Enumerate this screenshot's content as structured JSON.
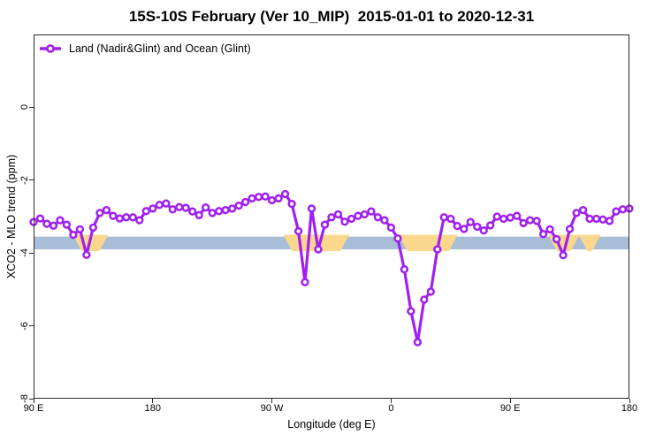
{
  "title": "15S-10S February (Ver 10_MIP)  2015-01-01 to 2020-12-31",
  "legend": {
    "label": "Land (Nadir&Glint) and Ocean (Glint)"
  },
  "axes": {
    "x": {
      "label": "Longitude (deg E)",
      "ticks": [
        {
          "v": 90,
          "label": "90 E"
        },
        {
          "v": 180,
          "label": "180"
        },
        {
          "v": 270,
          "label": "90 W"
        },
        {
          "v": 360,
          "label": "0"
        },
        {
          "v": 450,
          "label": "90 E"
        },
        {
          "v": 540,
          "label": "180"
        }
      ]
    },
    "y": {
      "label": "XCO2 - MLO trend (ppm)",
      "ticks": [
        {
          "v": 0,
          "label": "0"
        },
        {
          "v": -2,
          "label": "-2"
        },
        {
          "v": -4,
          "label": "-4"
        },
        {
          "v": -6,
          "label": "-6"
        },
        {
          "v": -8,
          "label": "-8"
        }
      ]
    }
  },
  "colors": {
    "line": "#A020F0",
    "marker_fill": "#ffffff",
    "blue_band": "#A8BDD6",
    "orange_band": "#FAD78C",
    "axis": "#2a2a2a"
  },
  "chart_data": {
    "type": "line",
    "title": "15S-10S February (Ver 10_MIP)  2015-01-01 to 2020-12-31",
    "xlabel": "Longitude (deg E)",
    "ylabel": "XCO2 - MLO trend (ppm)",
    "xlim": [
      90,
      540
    ],
    "ylim": [
      -8,
      2
    ],
    "grid": false,
    "legend_position": "top-left-inside",
    "x_tick_labels_note": "longitude wraps eastward: 90E,180,90W,0,90E,180",
    "series": [
      {
        "name": "Land (Nadir&Glint) and Ocean (Glint)",
        "color": "#A020F0",
        "marker": "open-circle",
        "x": [
          90,
          95,
          100,
          105,
          110,
          115,
          120,
          125,
          130,
          135,
          140,
          145,
          150,
          155,
          160,
          165,
          170,
          175,
          180,
          185,
          190,
          195,
          200,
          205,
          210,
          215,
          220,
          225,
          230,
          235,
          240,
          245,
          250,
          255,
          260,
          265,
          270,
          275,
          280,
          285,
          290,
          295,
          300,
          305,
          310,
          315,
          320,
          325,
          330,
          335,
          340,
          345,
          350,
          355,
          360,
          365,
          370,
          375,
          380,
          385,
          390,
          395,
          400,
          405,
          410,
          415,
          420,
          425,
          430,
          435,
          440,
          445,
          450,
          455,
          460,
          465,
          470,
          475,
          480,
          485,
          490,
          495,
          500,
          505,
          510,
          515,
          520,
          525,
          530,
          535,
          540
        ],
        "y": [
          -3.15,
          -3.05,
          -3.2,
          -3.25,
          -3.1,
          -3.22,
          -3.5,
          -3.35,
          -4.05,
          -3.3,
          -2.9,
          -2.82,
          -2.98,
          -3.05,
          -3.02,
          -3.02,
          -3.1,
          -2.85,
          -2.78,
          -2.68,
          -2.64,
          -2.8,
          -2.74,
          -2.76,
          -2.86,
          -2.96,
          -2.75,
          -2.9,
          -2.85,
          -2.82,
          -2.78,
          -2.7,
          -2.6,
          -2.5,
          -2.46,
          -2.45,
          -2.55,
          -2.5,
          -2.38,
          -2.65,
          -3.4,
          -4.8,
          -2.78,
          -3.9,
          -3.22,
          -3.02,
          -2.94,
          -3.14,
          -3.06,
          -2.98,
          -2.94,
          -2.86,
          -3.02,
          -3.1,
          -3.3,
          -3.6,
          -4.45,
          -5.6,
          -6.45,
          -5.28,
          -5.06,
          -3.9,
          -3.02,
          -3.06,
          -3.26,
          -3.34,
          -3.15,
          -3.28,
          -3.38,
          -3.24,
          -3.0,
          -3.06,
          -3.03,
          -2.98,
          -3.18,
          -3.1,
          -3.12,
          -3.48,
          -3.35,
          -3.62,
          -4.06,
          -3.34,
          -2.9,
          -2.82,
          -3.06,
          -3.06,
          -3.08,
          -3.12,
          -2.86,
          -2.8,
          -2.78
        ]
      }
    ],
    "bands": [
      {
        "name": "ocean-reference-band",
        "color": "#A8BDD6",
        "x_range": [
          90,
          540
        ],
        "y_range": [
          -3.9,
          -3.55
        ]
      },
      {
        "name": "flagged-segments-band",
        "color": "#FAD78C",
        "y_range": [
          -3.95,
          -3.5
        ],
        "segments": [
          [
            123,
            143
          ],
          [
            282,
            325
          ],
          [
            369,
            407
          ],
          [
            482,
            499
          ],
          [
            505,
            515
          ]
        ]
      }
    ]
  }
}
